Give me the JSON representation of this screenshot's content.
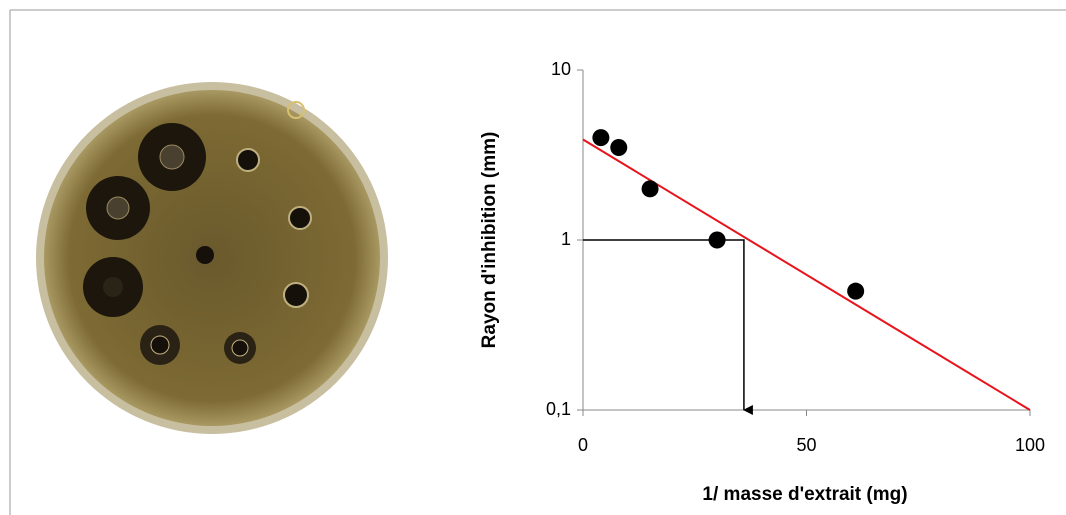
{
  "chart_data": {
    "type": "scatter",
    "xlabel": "1/ masse d'extrait (mg)",
    "ylabel": "Rayon d'inhibition (mm)",
    "x": [
      4,
      8,
      15,
      30,
      61
    ],
    "values": [
      4,
      3.5,
      2,
      1,
      0.5
    ],
    "color": "#000000",
    "xlim": [
      0,
      100
    ],
    "xticks": [
      0,
      50,
      100
    ],
    "ylim": [
      0.1,
      10
    ],
    "yticks": [
      10,
      1,
      {
        "value": 0.1,
        "label": "0,1"
      }
    ],
    "yscale": "log",
    "trendline": {
      "x": [
        0,
        100
      ],
      "y": [
        3.9,
        0.1
      ],
      "color": "#e8141c"
    },
    "guide": {
      "x": [
        0,
        36,
        36
      ],
      "y": [
        1,
        1,
        0.1
      ]
    }
  }
}
